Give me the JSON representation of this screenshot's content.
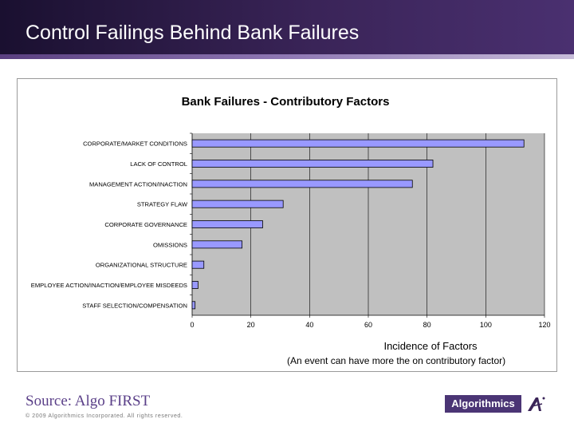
{
  "slide": {
    "title": "Control Failings Behind Bank Failures",
    "source": "Source: Algo FIRST",
    "copyright": "© 2009 Algorithmics Incorporated. All rights reserved.",
    "logo_text": "Algorithmics"
  },
  "colors": {
    "header": "#2e1c48",
    "bar_fill": "#9999ff",
    "plot_bg": "#c0c0c0",
    "source_text": "#5a3f88",
    "logo": "#4b3575"
  },
  "chart_data": {
    "type": "bar",
    "orientation": "horizontal",
    "title": "Bank Failures - Contributory Factors",
    "xlabel": "Incidence of Factors",
    "xlabel_note": "(An event can have more the on contributory factor)",
    "ylabel": "",
    "categories": [
      "CORPORATE/MARKET CONDITIONS",
      "LACK OF CONTROL",
      "MANAGEMENT ACTION/INACTION",
      "STRATEGY FLAW",
      "CORPORATE GOVERNANCE",
      "OMISSIONS",
      "ORGANIZATIONAL STRUCTURE",
      "EMPLOYEE ACTION/INACTION/EMPLOYEE MISDEEDS",
      "STAFF SELECTION/COMPENSATION"
    ],
    "values": [
      113,
      82,
      75,
      31,
      24,
      17,
      4,
      2,
      1
    ],
    "xlim": [
      0,
      120
    ],
    "xticks": [
      0,
      20,
      40,
      60,
      80,
      100,
      120
    ],
    "grid": true,
    "legend": "none"
  }
}
